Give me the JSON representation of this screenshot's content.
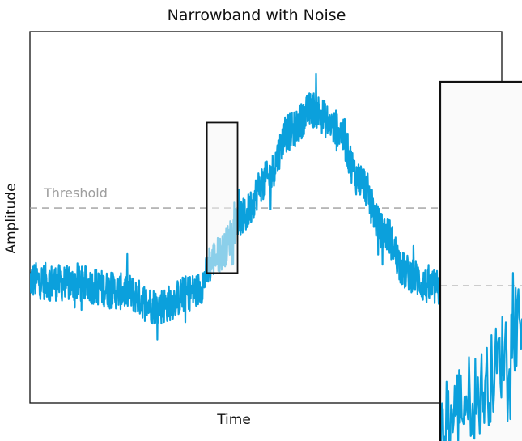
{
  "chart_data": {
    "type": "line",
    "title": "Narrowband with Noise",
    "xlabel": "Time",
    "ylabel": "Amplitude",
    "xlim": [
      0,
      1
    ],
    "ylim": [
      0,
      1
    ],
    "ticks": "none",
    "grid": false,
    "legend": "none",
    "series": [
      {
        "color": "#0ba0dc",
        "description_points": [
          {
            "x": 0.0,
            "y": 0.33
          },
          {
            "x": 0.1,
            "y": 0.32
          },
          {
            "x": 0.2,
            "y": 0.3
          },
          {
            "x": 0.27,
            "y": 0.26
          },
          {
            "x": 0.35,
            "y": 0.3
          },
          {
            "x": 0.4,
            "y": 0.4
          },
          {
            "x": 0.45,
            "y": 0.5
          },
          {
            "x": 0.5,
            "y": 0.6
          },
          {
            "x": 0.55,
            "y": 0.73
          },
          {
            "x": 0.6,
            "y": 0.79
          },
          {
            "x": 0.65,
            "y": 0.74
          },
          {
            "x": 0.7,
            "y": 0.6
          },
          {
            "x": 0.75,
            "y": 0.46
          },
          {
            "x": 0.8,
            "y": 0.35
          },
          {
            "x": 0.85,
            "y": 0.31
          },
          {
            "x": 0.9,
            "y": 0.3
          },
          {
            "x": 0.95,
            "y": 0.31
          },
          {
            "x": 1.0,
            "y": 0.34
          }
        ],
        "noise_amplitude": 0.05
      }
    ],
    "threshold": {
      "label": "Threshold",
      "y": 0.525,
      "color": "#9e9e9e"
    },
    "highlight_window": {
      "x_range": [
        0.375,
        0.44
      ],
      "y_range": [
        0.35,
        0.755
      ]
    },
    "zoom_inset": {
      "x_range": [
        0.375,
        0.44
      ],
      "y_range": [
        0.35,
        0.755
      ],
      "threshold_y": 0.525
    }
  }
}
